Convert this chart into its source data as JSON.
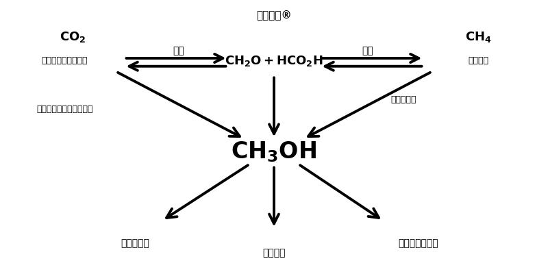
{
  "bg_color": "#ffffff",
  "fig_width": 8.0,
  "fig_height": 3.97,
  "title": "甲醇经济®",
  "top_center_math": "$\\mathbf{CH_2O + HCO_2H}$",
  "center_math": "$\\mathbf{CH_3OH}$",
  "co2_math": "$\\mathbf{CO_2}$",
  "ch4_math": "$\\mathbf{CH_4}$",
  "left_line2": "来自工业废气和大气",
  "left_line3": "在水中加氢或电化学还原",
  "right_line2": "天然来源",
  "reduction_label": "还原",
  "oxidation_label": "氧化",
  "selective_ox_label": "选择性氧化",
  "bottom_left_label": "储能和燃料",
  "bottom_center_label": "燃料电池",
  "bottom_right_label": "合成烃及其产物",
  "font_color": "#000000",
  "arrow_color": "#000000"
}
